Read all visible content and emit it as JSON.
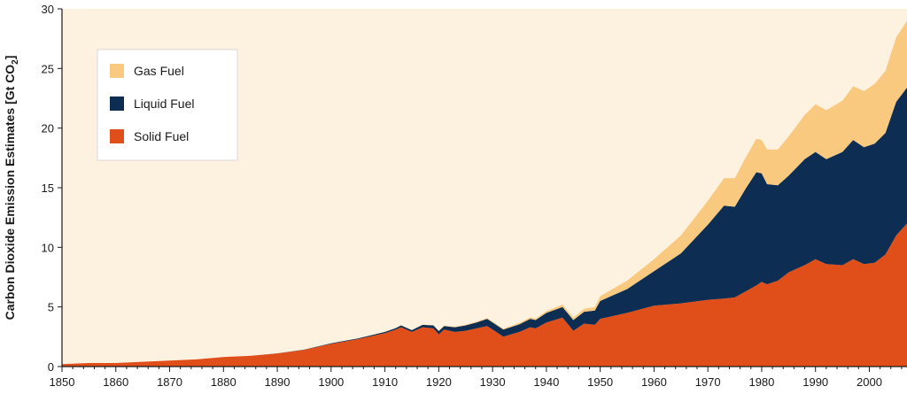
{
  "chart_data": {
    "type": "area",
    "stacked": true,
    "ylabel": "Carbon Dioxide Emission Estimates [Gt CO",
    "ylabel_subscript": "2",
    "ylabel_suffix": "]",
    "xlim": [
      1850,
      2007
    ],
    "ylim": [
      0,
      30
    ],
    "x_ticks": [
      1850,
      1860,
      1870,
      1880,
      1890,
      1900,
      1910,
      1920,
      1930,
      1940,
      1950,
      1960,
      1970,
      1980,
      1990,
      2000
    ],
    "y_ticks": [
      0,
      5,
      10,
      15,
      20,
      25,
      30
    ],
    "grid": false,
    "legend_placement": "top-left",
    "background_color": "#fdf1e0",
    "x": [
      1850,
      1855,
      1860,
      1865,
      1870,
      1875,
      1880,
      1885,
      1890,
      1895,
      1900,
      1905,
      1910,
      1912,
      1913,
      1915,
      1917,
      1919,
      1920,
      1921,
      1923,
      1925,
      1927,
      1929,
      1932,
      1935,
      1937,
      1938,
      1940,
      1943,
      1945,
      1947,
      1949,
      1950,
      1955,
      1960,
      1965,
      1970,
      1973,
      1975,
      1977,
      1979,
      1980,
      1981,
      1983,
      1985,
      1988,
      1990,
      1992,
      1995,
      1997,
      1999,
      2001,
      2003,
      2005,
      2007
    ],
    "series": [
      {
        "name": "Solid Fuel",
        "color": "#e04f1a",
        "values": [
          0.2,
          0.3,
          0.3,
          0.4,
          0.5,
          0.6,
          0.8,
          0.9,
          1.1,
          1.4,
          1.9,
          2.3,
          2.8,
          3.1,
          3.3,
          2.9,
          3.3,
          3.2,
          2.7,
          3.1,
          2.9,
          3.0,
          3.2,
          3.4,
          2.5,
          2.9,
          3.3,
          3.2,
          3.7,
          4.1,
          3.0,
          3.6,
          3.5,
          4.0,
          4.5,
          5.1,
          5.3,
          5.6,
          5.7,
          5.8,
          6.3,
          6.8,
          7.1,
          6.9,
          7.2,
          7.9,
          8.5,
          9.0,
          8.6,
          8.5,
          9.0,
          8.6,
          8.7,
          9.4,
          11.0,
          12.0
        ]
      },
      {
        "name": "Liquid Fuel",
        "color": "#0d2d52",
        "values": [
          0,
          0,
          0,
          0,
          0,
          0,
          0,
          0,
          0.01,
          0.02,
          0.05,
          0.06,
          0.1,
          0.12,
          0.15,
          0.15,
          0.2,
          0.25,
          0.28,
          0.3,
          0.4,
          0.45,
          0.5,
          0.6,
          0.6,
          0.65,
          0.7,
          0.7,
          0.8,
          0.9,
          0.9,
          1.0,
          1.2,
          1.5,
          2.0,
          2.9,
          4.2,
          6.3,
          7.8,
          7.6,
          8.6,
          9.5,
          9.1,
          8.4,
          8.0,
          8.1,
          8.9,
          9.0,
          8.8,
          9.5,
          10.0,
          9.8,
          10.0,
          10.2,
          11.2,
          11.4
        ]
      },
      {
        "name": "Gas Fuel",
        "color": "#f8c97e",
        "values": [
          0,
          0,
          0,
          0,
          0,
          0,
          0,
          0,
          0,
          0,
          0,
          0,
          0.01,
          0.01,
          0.01,
          0.02,
          0.02,
          0.02,
          0.03,
          0.03,
          0.04,
          0.05,
          0.06,
          0.07,
          0.08,
          0.1,
          0.12,
          0.12,
          0.15,
          0.2,
          0.2,
          0.25,
          0.3,
          0.4,
          0.7,
          1.0,
          1.5,
          2.0,
          2.3,
          2.4,
          2.6,
          2.8,
          2.8,
          2.9,
          3.0,
          3.3,
          3.7,
          4.0,
          4.1,
          4.3,
          4.5,
          4.7,
          5.0,
          5.2,
          5.4,
          5.6
        ]
      }
    ]
  }
}
